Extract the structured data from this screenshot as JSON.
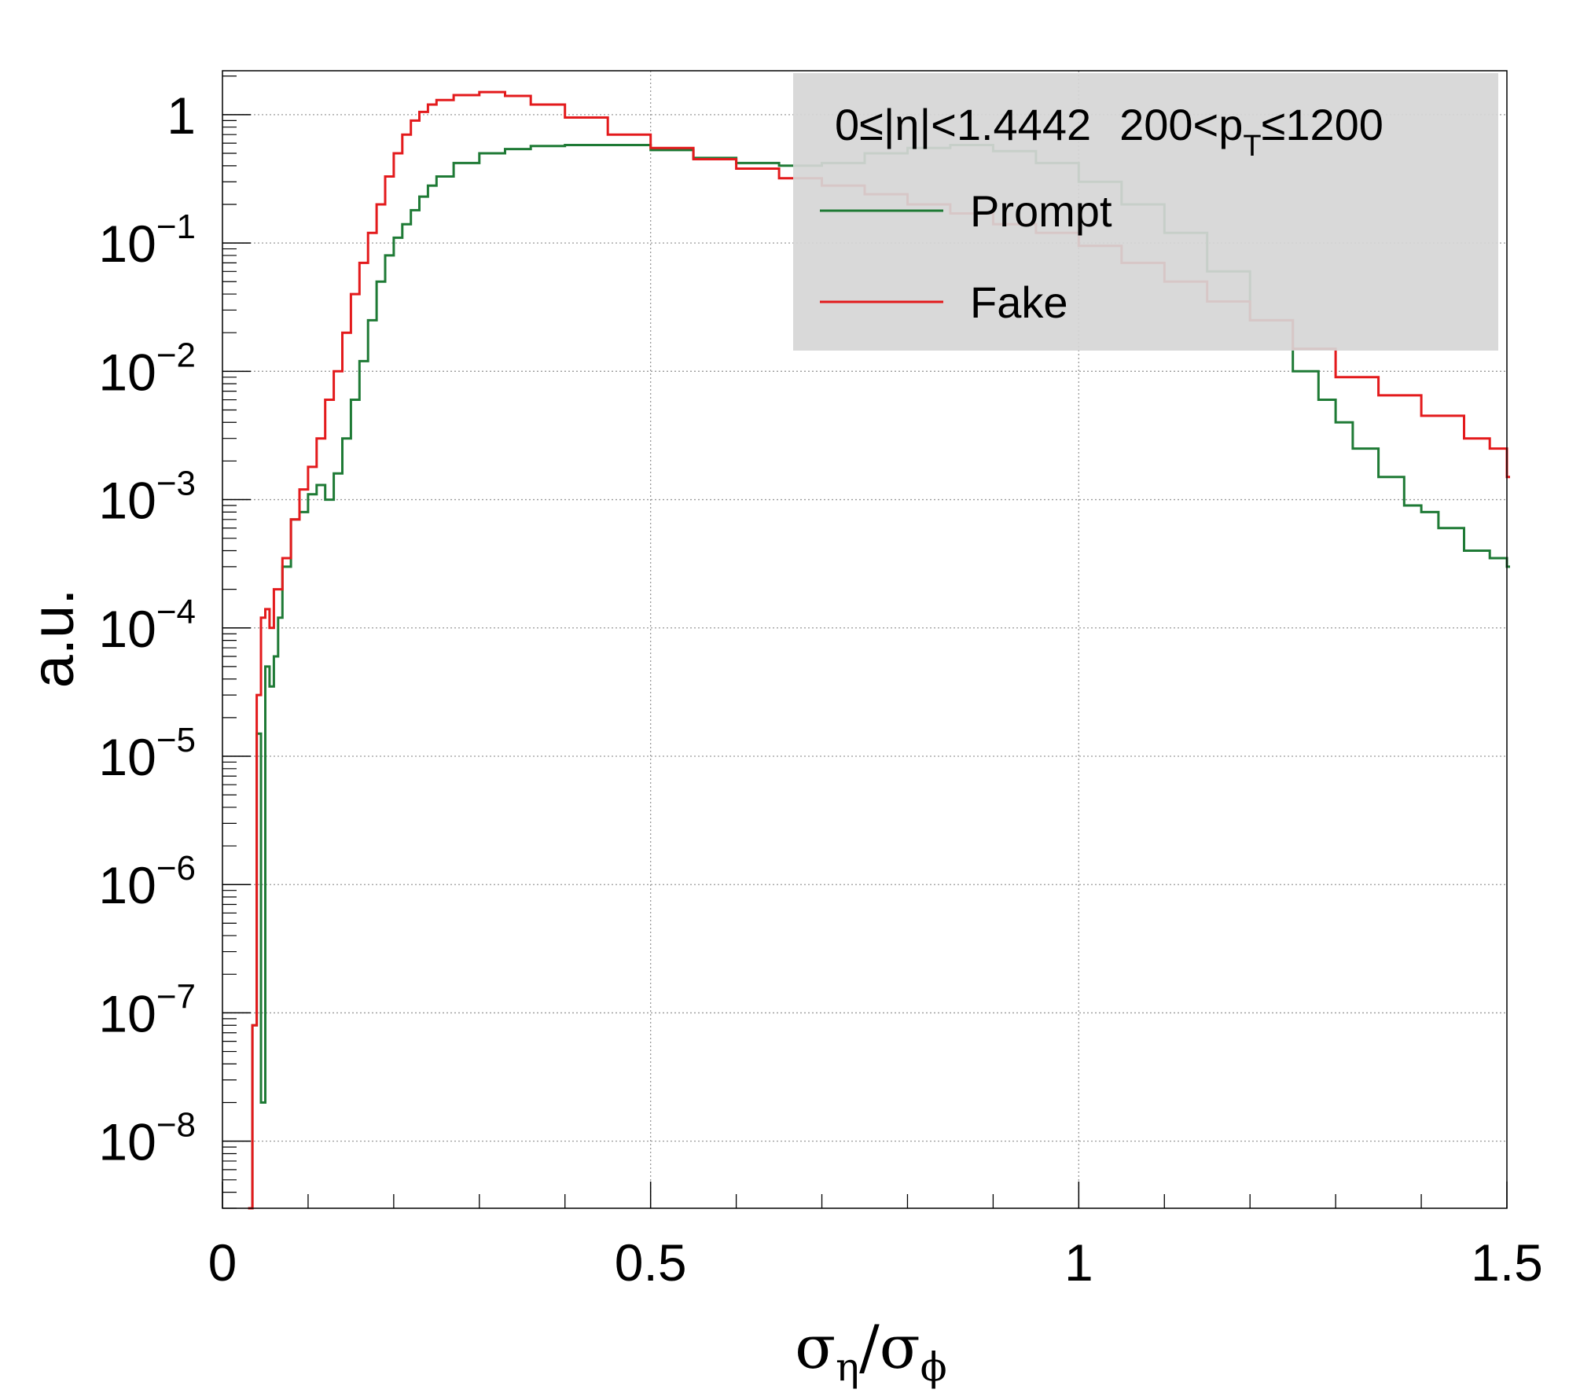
{
  "chart_data": {
    "type": "line",
    "style": "step-histogram",
    "title": "",
    "annotation": "0≤|η|<1.4442  200<p_T≤1200",
    "annotation_parts": {
      "eta_range": "0≤|η|<1.4442",
      "pt_prefix": "200<p",
      "pt_sub": "T",
      "pt_suffix": "≤1200"
    },
    "xlabel": "σ_η/σ_ϕ",
    "xlabel_parts": {
      "sigma": "σ",
      "sub1": "η",
      "slash": "/",
      "sub2": "ϕ"
    },
    "ylabel": "a.u.",
    "xlim": [
      0,
      1.5
    ],
    "ylim": [
      3e-09,
      2.2
    ],
    "log_y": true,
    "grid": true,
    "legend_position": "top-right",
    "x_ticks": [
      {
        "value": 0,
        "label": "0"
      },
      {
        "value": 0.5,
        "label": "0.5"
      },
      {
        "value": 1,
        "label": "1"
      },
      {
        "value": 1.5,
        "label": "1.5"
      }
    ],
    "y_ticks": [
      {
        "exp": 0,
        "base": "1",
        "sup": ""
      },
      {
        "exp": -1,
        "base": "10",
        "sup": "−1"
      },
      {
        "exp": -2,
        "base": "10",
        "sup": "−2"
      },
      {
        "exp": -3,
        "base": "10",
        "sup": "−3"
      },
      {
        "exp": -4,
        "base": "10",
        "sup": "−4"
      },
      {
        "exp": -5,
        "base": "10",
        "sup": "−5"
      },
      {
        "exp": -6,
        "base": "10",
        "sup": "−6"
      },
      {
        "exp": -7,
        "base": "10",
        "sup": "−7"
      },
      {
        "exp": -8,
        "base": "10",
        "sup": "−8"
      }
    ],
    "series": [
      {
        "name": "Prompt",
        "color": "#1e7a35",
        "x": [
          0.03,
          0.035,
          0.04,
          0.045,
          0.05,
          0.055,
          0.06,
          0.065,
          0.07,
          0.08,
          0.09,
          0.1,
          0.11,
          0.12,
          0.13,
          0.14,
          0.15,
          0.16,
          0.17,
          0.18,
          0.19,
          0.2,
          0.21,
          0.22,
          0.23,
          0.24,
          0.25,
          0.27,
          0.3,
          0.33,
          0.36,
          0.4,
          0.45,
          0.5,
          0.55,
          0.6,
          0.65,
          0.7,
          0.75,
          0.8,
          0.85,
          0.9,
          0.95,
          1.0,
          1.05,
          1.1,
          1.15,
          1.2,
          1.25,
          1.28,
          1.3,
          1.32,
          1.35,
          1.38,
          1.4,
          1.42,
          1.45,
          1.48,
          1.5
        ],
        "values": [
          3e-09,
          8e-08,
          1.5e-05,
          2e-08,
          5e-05,
          3.5e-05,
          6e-05,
          0.00012,
          0.0003,
          0.0007,
          0.0008,
          0.0011,
          0.0013,
          0.001,
          0.0016,
          0.003,
          0.006,
          0.012,
          0.025,
          0.05,
          0.08,
          0.11,
          0.14,
          0.18,
          0.23,
          0.28,
          0.33,
          0.42,
          0.5,
          0.54,
          0.57,
          0.58,
          0.58,
          0.53,
          0.46,
          0.42,
          0.4,
          0.42,
          0.5,
          0.55,
          0.58,
          0.52,
          0.42,
          0.3,
          0.2,
          0.12,
          0.06,
          0.025,
          0.01,
          0.006,
          0.004,
          0.0025,
          0.0015,
          0.0009,
          0.0008,
          0.0006,
          0.0004,
          0.00035,
          0.0003
        ]
      },
      {
        "name": "Fake",
        "color": "#e31a1c",
        "x": [
          0.03,
          0.035,
          0.04,
          0.045,
          0.05,
          0.055,
          0.06,
          0.07,
          0.08,
          0.09,
          0.1,
          0.11,
          0.12,
          0.13,
          0.14,
          0.15,
          0.16,
          0.17,
          0.18,
          0.19,
          0.2,
          0.21,
          0.22,
          0.23,
          0.24,
          0.25,
          0.27,
          0.3,
          0.33,
          0.36,
          0.4,
          0.45,
          0.5,
          0.55,
          0.6,
          0.65,
          0.7,
          0.75,
          0.8,
          0.85,
          0.9,
          0.95,
          1.0,
          1.05,
          1.1,
          1.15,
          1.2,
          1.25,
          1.3,
          1.35,
          1.4,
          1.45,
          1.48,
          1.5
        ],
        "values": [
          3e-09,
          8e-08,
          3e-05,
          0.00012,
          0.00014,
          0.0001,
          0.0002,
          0.00035,
          0.0007,
          0.0012,
          0.0018,
          0.003,
          0.006,
          0.01,
          0.02,
          0.04,
          0.07,
          0.12,
          0.2,
          0.33,
          0.5,
          0.7,
          0.9,
          1.05,
          1.2,
          1.3,
          1.42,
          1.5,
          1.4,
          1.2,
          0.95,
          0.7,
          0.55,
          0.45,
          0.38,
          0.32,
          0.28,
          0.24,
          0.2,
          0.17,
          0.14,
          0.12,
          0.095,
          0.07,
          0.05,
          0.035,
          0.025,
          0.015,
          0.009,
          0.0065,
          0.0045,
          0.003,
          0.0025,
          0.0015
        ]
      }
    ]
  }
}
